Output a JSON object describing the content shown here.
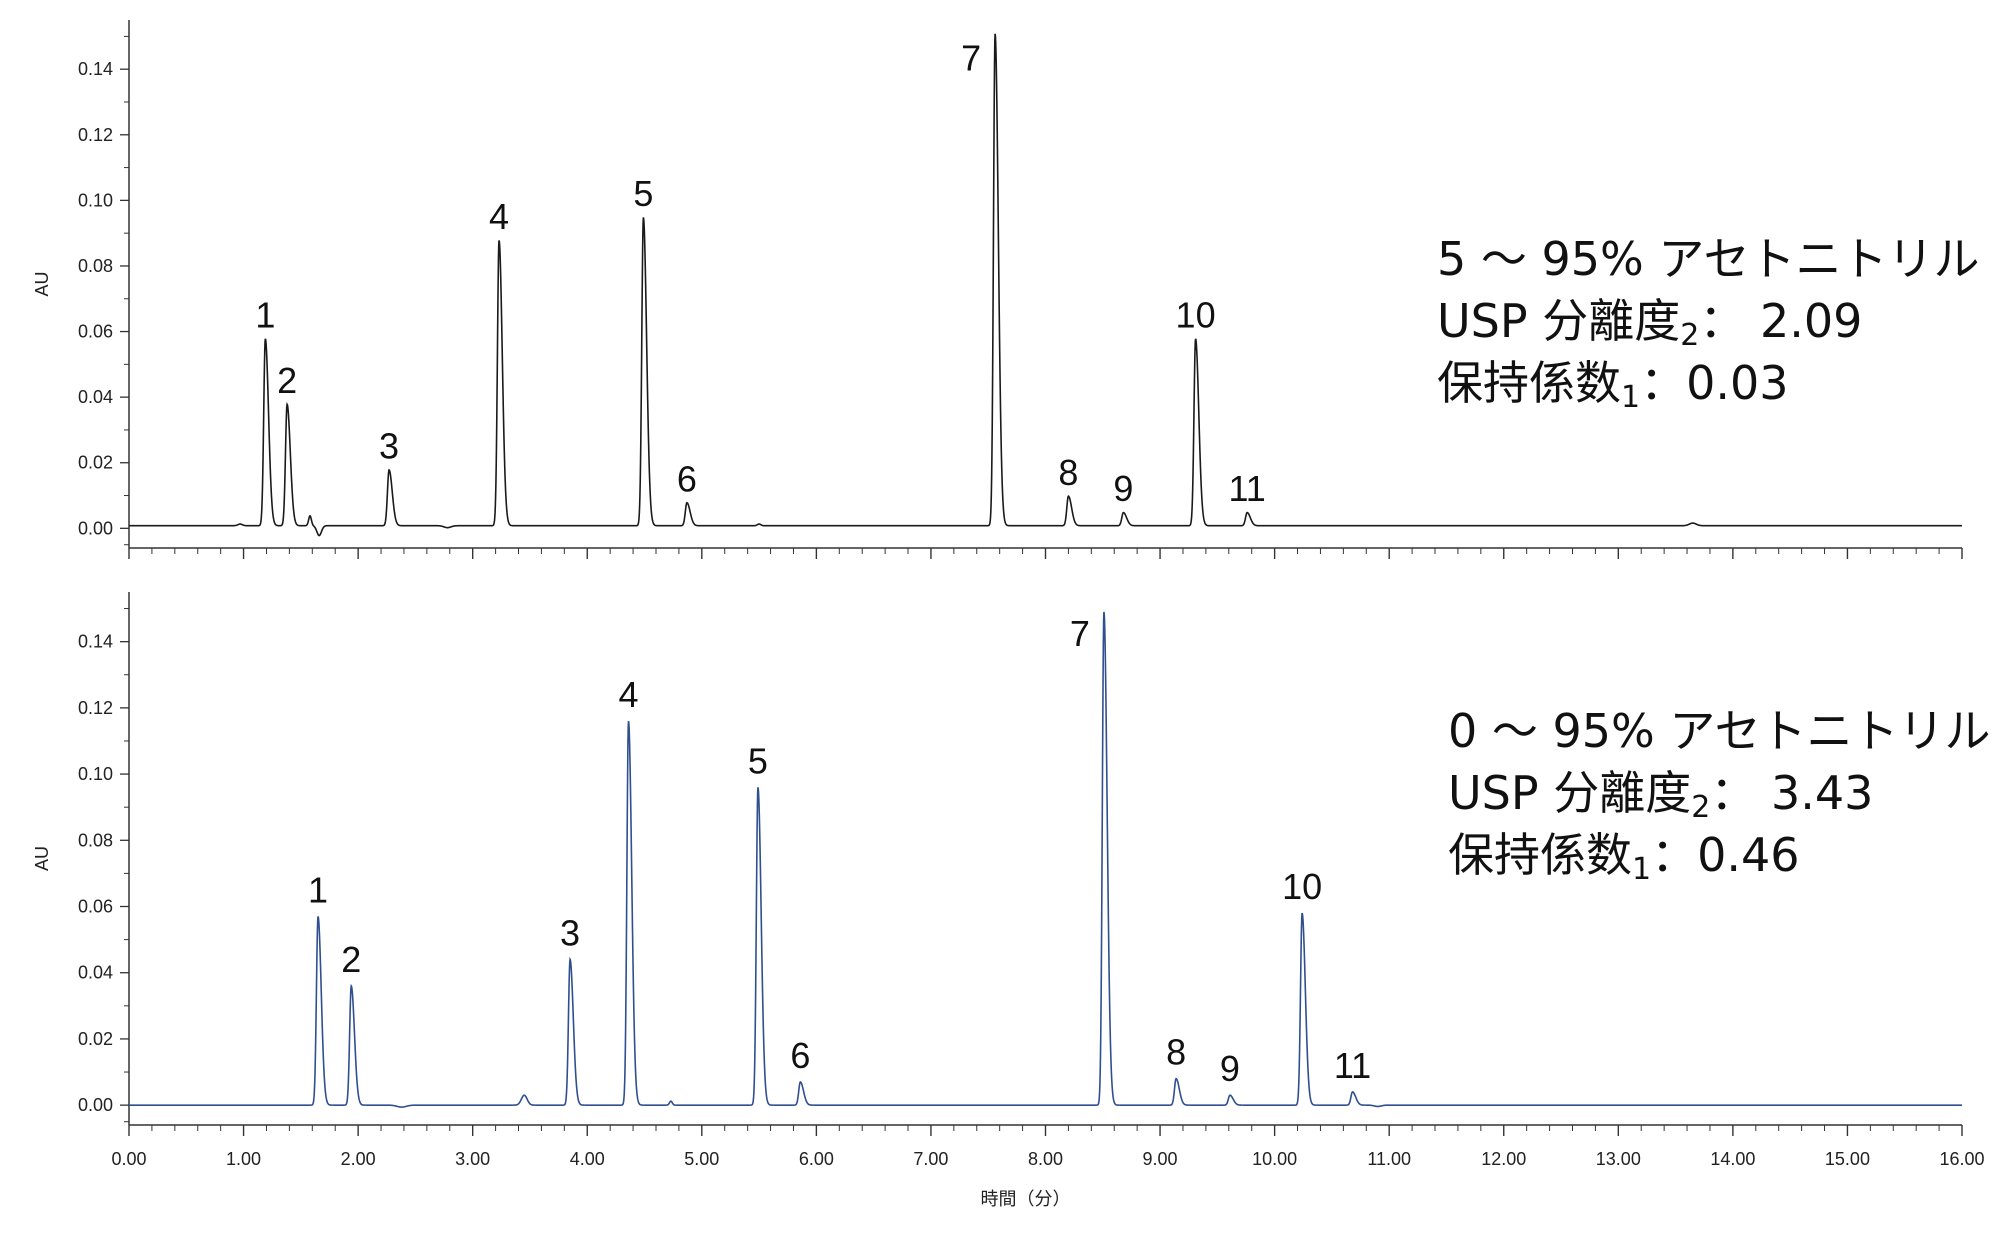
{
  "chart_data": [
    {
      "type": "line",
      "ylabel": "AU",
      "xlim": [
        0,
        16
      ],
      "ylim": [
        -0.006,
        0.155
      ],
      "yticks": [
        "0.00",
        "0.02",
        "0.04",
        "0.06",
        "0.08",
        "0.10",
        "0.12",
        "0.14"
      ],
      "line_color": "#1a1a1a",
      "annotation": {
        "line1": "5 ～ 95% アセトニトリル",
        "line2_prefix": "USP 分離度",
        "line2_sub": "2",
        "line2_suffix": "：  2.09",
        "line3_prefix": "保持係数",
        "line3_sub": "1",
        "line3_suffix": "：0.03"
      },
      "peaks": [
        {
          "label": "1",
          "rt": 1.19,
          "height": 0.057
        },
        {
          "label": "2",
          "rt": 1.38,
          "height": 0.037
        },
        {
          "label": "3",
          "rt": 2.27,
          "height": 0.017
        },
        {
          "label": "4",
          "rt": 3.23,
          "height": 0.087
        },
        {
          "label": "5",
          "rt": 4.49,
          "height": 0.094
        },
        {
          "label": "6",
          "rt": 4.87,
          "height": 0.007
        },
        {
          "label": "7",
          "rt": 7.56,
          "height": 0.15
        },
        {
          "label": "8",
          "rt": 8.2,
          "height": 0.009
        },
        {
          "label": "9",
          "rt": 8.68,
          "height": 0.004
        },
        {
          "label": "10",
          "rt": 9.31,
          "height": 0.057
        },
        {
          "label": "11",
          "rt": 9.76,
          "height": 0.004
        }
      ]
    },
    {
      "type": "line",
      "ylabel": "AU",
      "xlabel": "時間（分）",
      "xlim": [
        0,
        16
      ],
      "ylim": [
        -0.006,
        0.155
      ],
      "xticks": [
        "0.00",
        "1.00",
        "2.00",
        "3.00",
        "4.00",
        "5.00",
        "6.00",
        "7.00",
        "8.00",
        "9.00",
        "10.00",
        "11.00",
        "12.00",
        "13.00",
        "14.00",
        "15.00",
        "16.00"
      ],
      "yticks": [
        "0.00",
        "0.02",
        "0.04",
        "0.06",
        "0.08",
        "0.10",
        "0.12",
        "0.14"
      ],
      "line_color": "#2f4f8f",
      "annotation": {
        "line1": "0 ～ 95% アセトニトリル",
        "line2_prefix": "USP 分離度",
        "line2_sub": "2",
        "line2_suffix": "：  3.43",
        "line3_prefix": "保持係数",
        "line3_sub": "1",
        "line3_suffix": "：0.46"
      },
      "peaks": [
        {
          "label": "1",
          "rt": 1.65,
          "height": 0.057
        },
        {
          "label": "2",
          "rt": 1.94,
          "height": 0.036
        },
        {
          "label": "3",
          "rt": 3.85,
          "height": 0.044
        },
        {
          "label": "4",
          "rt": 4.36,
          "height": 0.116
        },
        {
          "label": "5",
          "rt": 5.49,
          "height": 0.096
        },
        {
          "label": "6",
          "rt": 5.86,
          "height": 0.007
        },
        {
          "label": "7",
          "rt": 8.51,
          "height": 0.149
        },
        {
          "label": "8",
          "rt": 9.14,
          "height": 0.008
        },
        {
          "label": "9",
          "rt": 9.61,
          "height": 0.003
        },
        {
          "label": "10",
          "rt": 10.24,
          "height": 0.058
        },
        {
          "label": "11",
          "rt": 10.68,
          "height": 0.004
        }
      ]
    }
  ]
}
